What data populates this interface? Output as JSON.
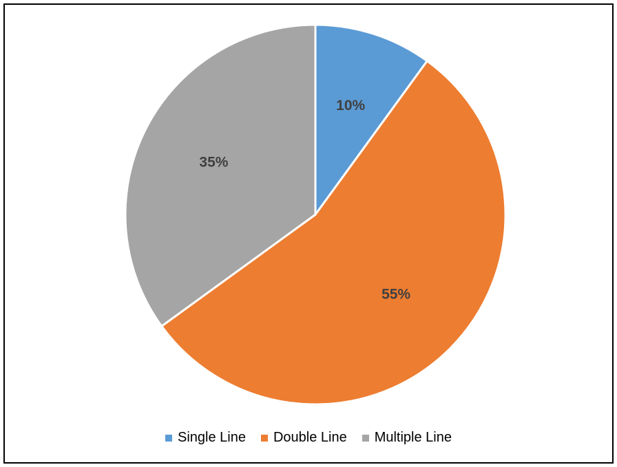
{
  "chart_data": {
    "type": "pie",
    "title": "",
    "categories": [
      "Single Line",
      "Double Line",
      "Multiple Line"
    ],
    "values": [
      10,
      55,
      35
    ],
    "data_labels": [
      "10%",
      "55%",
      "35%"
    ],
    "colors": [
      "#5B9BD5",
      "#ED7D31",
      "#A5A5A5"
    ],
    "legend": "bottom"
  }
}
